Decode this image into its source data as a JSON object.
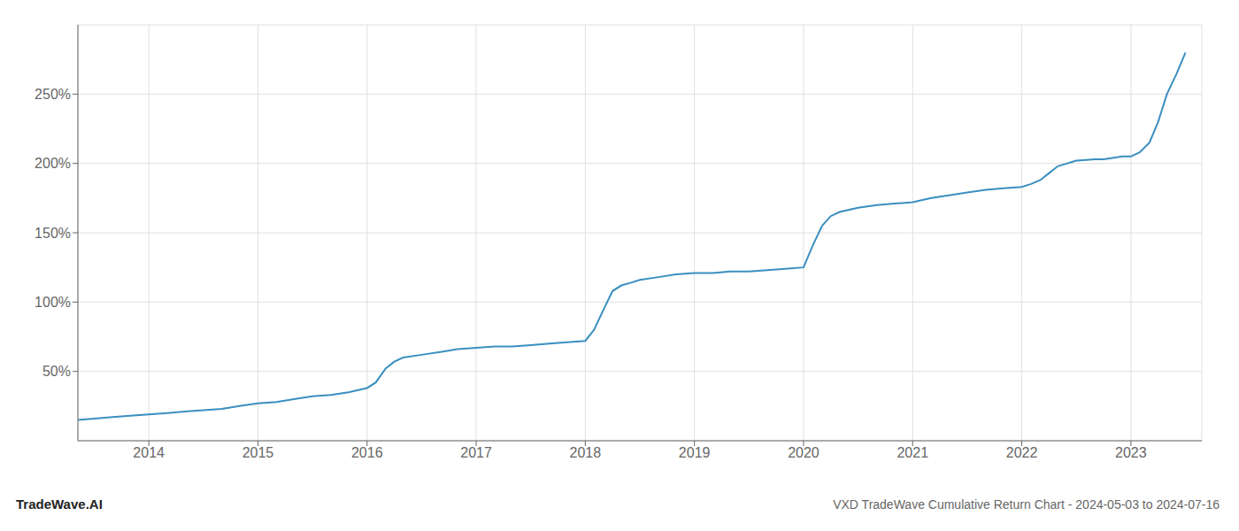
{
  "chart_data": {
    "type": "line",
    "title": "VXD TradeWave Cumulative Return Chart - 2024-05-03 to 2024-07-16",
    "annotations": [
      "TradeWave.AI"
    ],
    "color": "#3a8fc0",
    "grid": true,
    "x": [
      2013.35,
      2013.5,
      2013.67,
      2013.83,
      2014.0,
      2014.17,
      2014.33,
      2014.5,
      2014.67,
      2014.83,
      2015.0,
      2015.17,
      2015.33,
      2015.5,
      2015.67,
      2015.83,
      2016.0,
      2016.08,
      2016.17,
      2016.25,
      2016.33,
      2016.5,
      2016.67,
      2016.83,
      2017.0,
      2017.17,
      2017.33,
      2017.5,
      2017.67,
      2017.83,
      2018.0,
      2018.08,
      2018.17,
      2018.25,
      2018.33,
      2018.42,
      2018.5,
      2018.67,
      2018.83,
      2019.0,
      2019.17,
      2019.33,
      2019.5,
      2019.67,
      2019.83,
      2020.0,
      2020.08,
      2020.17,
      2020.25,
      2020.33,
      2020.5,
      2020.67,
      2020.83,
      2021.0,
      2021.17,
      2021.33,
      2021.5,
      2021.67,
      2021.83,
      2022.0,
      2022.08,
      2022.17,
      2022.25,
      2022.33,
      2022.5,
      2022.67,
      2022.75,
      2022.83,
      2022.92,
      2023.0,
      2023.08,
      2023.17,
      2023.25,
      2023.33,
      2023.42,
      2023.5
    ],
    "values": [
      15,
      16,
      17,
      18,
      19,
      20,
      21,
      22,
      23,
      25,
      27,
      28,
      30,
      32,
      33,
      35,
      38,
      42,
      52,
      57,
      60,
      62,
      64,
      66,
      67,
      68,
      68,
      69,
      70,
      71,
      72,
      80,
      95,
      108,
      112,
      114,
      116,
      118,
      120,
      121,
      121,
      122,
      122,
      123,
      124,
      125,
      140,
      155,
      162,
      165,
      168,
      170,
      171,
      172,
      175,
      177,
      179,
      181,
      182,
      183,
      185,
      188,
      193,
      198,
      202,
      203,
      203,
      204,
      205,
      205,
      208,
      215,
      230,
      250,
      265,
      280
    ],
    "xlim": [
      2013.35,
      2023.65
    ],
    "xticks": [
      2014,
      2015,
      2016,
      2017,
      2018,
      2019,
      2020,
      2021,
      2022,
      2023
    ],
    "ylim": [
      0,
      300
    ],
    "yticks": [
      {
        "value": 50,
        "label": "50%"
      },
      {
        "value": 100,
        "label": "100%"
      },
      {
        "value": 150,
        "label": "150%"
      },
      {
        "value": 200,
        "label": "200%"
      },
      {
        "value": 250,
        "label": "250%"
      }
    ]
  }
}
